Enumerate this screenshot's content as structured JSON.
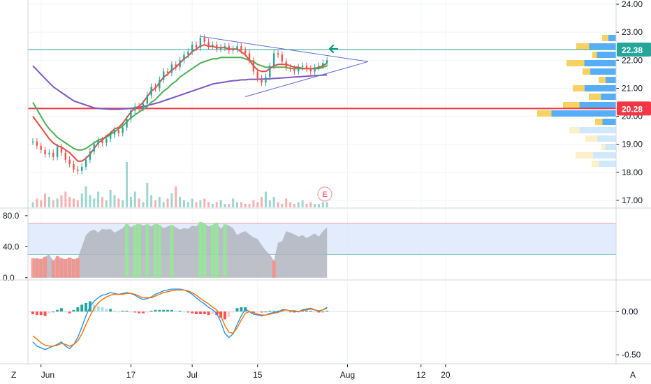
{
  "chart_data": [
    {
      "type": "candlestick",
      "panel": "price",
      "title": "",
      "y_ticks": [
        "24.00",
        "23.00",
        "22.00",
        "21.00",
        "20.00",
        "19.00",
        "18.00",
        "17.00"
      ],
      "y_tick_values": [
        24,
        23,
        22,
        21,
        20,
        19,
        18,
        17
      ],
      "ylim": [
        16.75,
        24.15
      ],
      "price_labels": [
        {
          "text": "22.38",
          "value": 22.38,
          "color": "#26a69a"
        },
        {
          "text": "20.28",
          "value": 20.28,
          "color": "#f23645"
        }
      ],
      "horizontal_lines": [
        {
          "value": 22.38,
          "color": "#26a69a"
        },
        {
          "value": 20.28,
          "color": "#f23645"
        }
      ],
      "close_series": [
        19.1,
        18.95,
        18.8,
        18.65,
        18.7,
        18.55,
        18.9,
        18.7,
        18.45,
        18.3,
        18.1,
        18.05,
        18.2,
        18.45,
        18.75,
        19.0,
        19.15,
        19.05,
        19.2,
        19.35,
        19.5,
        19.4,
        19.6,
        19.9,
        20.2,
        20.35,
        20.3,
        20.45,
        20.75,
        21.05,
        21.0,
        21.3,
        21.6,
        21.55,
        21.85,
        21.75,
        22.0,
        22.2,
        22.3,
        22.55,
        22.45,
        22.8,
        22.65,
        22.5,
        22.55,
        22.4,
        22.45,
        22.5,
        22.35,
        22.4,
        22.5,
        22.35,
        22.25,
        22.0,
        21.6,
        21.35,
        21.2,
        21.4,
        21.8,
        22.25,
        22.2,
        21.95,
        21.75,
        21.7,
        21.6,
        21.75,
        21.8,
        21.7,
        21.6,
        21.75,
        21.8,
        21.9,
        22.0
      ],
      "ma_fast": [
        20.0,
        19.8,
        19.6,
        19.4,
        19.2,
        19.05,
        18.95,
        18.9,
        18.8,
        18.7,
        18.55,
        18.4,
        18.4,
        18.5,
        18.65,
        18.85,
        19.05,
        19.15,
        19.3,
        19.4,
        19.55,
        19.6,
        19.75,
        19.95,
        20.15,
        20.3,
        20.35,
        20.5,
        20.7,
        20.9,
        21.0,
        21.2,
        21.4,
        21.5,
        21.65,
        21.75,
        21.9,
        22.05,
        22.15,
        22.3,
        22.4,
        22.5,
        22.55,
        22.5,
        22.5,
        22.45,
        22.45,
        22.45,
        22.4,
        22.4,
        22.4,
        22.3,
        22.2,
        22.0,
        21.8,
        21.65,
        21.6,
        21.6,
        21.7,
        21.8,
        21.85,
        21.85,
        21.85,
        21.8,
        21.75,
        21.75,
        21.7,
        21.7,
        21.7,
        21.7,
        21.75,
        21.8,
        21.9
      ],
      "ma_mid": [
        20.5,
        20.25,
        20.0,
        19.75,
        19.55,
        19.4,
        19.25,
        19.15,
        19.05,
        18.95,
        18.85,
        18.8,
        18.8,
        18.85,
        18.95,
        19.05,
        19.15,
        19.2,
        19.25,
        19.35,
        19.45,
        19.55,
        19.65,
        19.8,
        19.95,
        20.05,
        20.15,
        20.25,
        20.35,
        20.5,
        20.6,
        20.75,
        20.9,
        21.0,
        21.15,
        21.25,
        21.4,
        21.5,
        21.6,
        21.7,
        21.8,
        21.9,
        21.95,
        22.0,
        22.05,
        22.05,
        22.1,
        22.1,
        22.1,
        22.1,
        22.1,
        22.1,
        22.05,
        22.0,
        21.95,
        21.85,
        21.8,
        21.75,
        21.75,
        21.75,
        21.75,
        21.75,
        21.75,
        21.7,
        21.7,
        21.7,
        21.7,
        21.7,
        21.7,
        21.7,
        21.7,
        21.75,
        21.8
      ],
      "ma_slow": [
        21.8,
        21.65,
        21.5,
        21.35,
        21.2,
        21.05,
        20.95,
        20.85,
        20.75,
        20.65,
        20.55,
        20.5,
        20.45,
        20.4,
        20.35,
        20.3,
        20.28,
        20.27,
        20.26,
        20.25,
        20.25,
        20.25,
        20.26,
        20.27,
        20.28,
        20.3,
        20.32,
        20.35,
        20.38,
        20.42,
        20.46,
        20.5,
        20.55,
        20.6,
        20.65,
        20.7,
        20.75,
        20.8,
        20.85,
        20.9,
        20.95,
        21.0,
        21.05,
        21.1,
        21.15,
        21.18,
        21.2,
        21.22,
        21.25,
        21.27,
        21.28,
        21.3,
        21.3,
        21.32,
        21.32,
        21.32,
        21.33,
        21.33,
        21.34,
        21.35,
        21.36,
        21.37,
        21.38,
        21.39,
        21.4,
        21.41,
        21.42,
        21.43,
        21.44,
        21.45,
        21.46,
        21.47,
        21.48
      ],
      "volume": [
        3,
        5,
        4,
        8,
        6,
        4,
        5,
        7,
        9,
        6,
        5,
        4,
        8,
        12,
        7,
        5,
        9,
        6,
        4,
        10,
        7,
        5,
        4,
        26,
        6,
        9,
        5,
        3,
        14,
        7,
        4,
        6,
        3,
        5,
        8,
        12,
        6,
        4,
        3,
        5,
        3,
        4,
        5,
        3,
        2,
        3,
        4,
        2,
        2,
        5,
        3,
        3,
        2,
        2,
        4,
        3,
        6,
        9,
        4,
        6,
        3,
        2,
        5,
        3,
        2,
        3,
        4,
        2,
        3,
        2,
        2,
        3,
        3
      ],
      "annotations": [
        {
          "type": "earnings-marker",
          "text": "E"
        },
        {
          "type": "arrow",
          "direction": "left",
          "color": "#089981"
        },
        {
          "type": "triangle-pattern",
          "color": "#5b6bd6"
        }
      ],
      "volume_profile_bars": 16
    },
    {
      "type": "area",
      "panel": "oscillator",
      "y_ticks": [
        "80.0",
        "40.0",
        "0.0"
      ],
      "y_tick_values": [
        80,
        40,
        0
      ],
      "ylim": [
        -2,
        88
      ],
      "bands": {
        "upper": 70,
        "lower": 30
      },
      "values": [
        25,
        25,
        24,
        27,
        30,
        22,
        28,
        25,
        24,
        26,
        24,
        25,
        40,
        55,
        60,
        62,
        58,
        63,
        62,
        63,
        58,
        61,
        64,
        70,
        65,
        68,
        70,
        67,
        69,
        66,
        70,
        68,
        64,
        66,
        68,
        65,
        62,
        64,
        63,
        67,
        66,
        72,
        70,
        66,
        68,
        71,
        63,
        69,
        67,
        64,
        55,
        58,
        60,
        56,
        52,
        50,
        42,
        35,
        30,
        22,
        45,
        47,
        60,
        58,
        56,
        53,
        55,
        51,
        54,
        57,
        53,
        60,
        65
      ]
    },
    {
      "type": "macd",
      "panel": "macd",
      "y_ticks": [
        "0.00",
        "-0.50"
      ],
      "y_tick_values": [
        0,
        -0.5
      ],
      "ylim": [
        -0.58,
        0.35
      ],
      "macd": [
        -0.35,
        -0.4,
        -0.42,
        -0.44,
        -0.42,
        -0.4,
        -0.38,
        -0.35,
        -0.4,
        -0.43,
        -0.38,
        -0.3,
        -0.18,
        -0.05,
        0.06,
        0.12,
        0.16,
        0.19,
        0.2,
        0.22,
        0.21,
        0.2,
        0.21,
        0.22,
        0.21,
        0.19,
        0.16,
        0.14,
        0.15,
        0.17,
        0.2,
        0.22,
        0.24,
        0.25,
        0.26,
        0.26,
        0.26,
        0.25,
        0.23,
        0.2,
        0.16,
        0.12,
        0.09,
        0.05,
        0.02,
        -0.02,
        -0.12,
        -0.25,
        -0.3,
        -0.26,
        -0.15,
        -0.05,
        0.03,
        0.0,
        -0.03,
        -0.04,
        -0.05,
        -0.04,
        -0.02,
        -0.01,
        0.0,
        0.02,
        0.02,
        0.01,
        0.0,
        0.0,
        0.02,
        0.03,
        0.04,
        0.02,
        0.0,
        0.02,
        0.05
      ],
      "signal": [
        -0.28,
        -0.32,
        -0.36,
        -0.39,
        -0.4,
        -0.4,
        -0.39,
        -0.37,
        -0.38,
        -0.4,
        -0.38,
        -0.34,
        -0.26,
        -0.15,
        -0.05,
        0.04,
        0.1,
        0.14,
        0.17,
        0.19,
        0.2,
        0.2,
        0.2,
        0.21,
        0.21,
        0.2,
        0.18,
        0.16,
        0.16,
        0.16,
        0.18,
        0.2,
        0.22,
        0.23,
        0.24,
        0.25,
        0.25,
        0.25,
        0.24,
        0.22,
        0.19,
        0.15,
        0.12,
        0.09,
        0.05,
        0.02,
        -0.05,
        -0.16,
        -0.24,
        -0.25,
        -0.19,
        -0.1,
        -0.02,
        0.0,
        -0.01,
        -0.03,
        -0.04,
        -0.04,
        -0.03,
        -0.02,
        -0.01,
        0.01,
        0.02,
        0.01,
        0.01,
        0.0,
        0.01,
        0.02,
        0.03,
        0.02,
        0.01,
        0.02,
        0.04
      ],
      "histogram": [
        -0.03,
        -0.04,
        -0.04,
        -0.05,
        -0.02,
        0.0,
        0.02,
        0.04,
        0.0,
        -0.02,
        0.02,
        0.05,
        0.08,
        0.1,
        0.12,
        0.08,
        0.06,
        0.05,
        0.03,
        0.03,
        0.01,
        0.0,
        0.01,
        0.01,
        0.0,
        -0.01,
        -0.02,
        -0.02,
        -0.01,
        0.01,
        0.02,
        0.02,
        0.02,
        0.02,
        0.02,
        0.01,
        0.01,
        0.0,
        -0.01,
        -0.02,
        -0.03,
        -0.03,
        -0.03,
        -0.04,
        -0.03,
        -0.04,
        -0.07,
        -0.09,
        -0.06,
        -0.01,
        0.04,
        0.05,
        0.05,
        0.0,
        -0.02,
        -0.01,
        -0.01,
        0.0,
        0.01,
        0.01,
        0.01,
        0.01,
        0.0,
        0.0,
        -0.01,
        0.0,
        0.01,
        0.01,
        0.01,
        0.0,
        -0.01,
        0.0,
        0.01
      ]
    }
  ],
  "x_axis": {
    "labels": [
      {
        "text": "Jun",
        "bar": 2
      },
      {
        "text": "17",
        "bar": 24
      },
      {
        "text": "Jul",
        "bar": 39
      },
      {
        "text": "15",
        "bar": 55
      },
      {
        "text": "Aug",
        "bar": 77
      },
      {
        "text": "12",
        "bar": 95
      },
      {
        "text": "20",
        "bar": 101
      }
    ]
  },
  "corner_labels": {
    "left": "Z",
    "right": "A"
  },
  "colors": {
    "up": "#26a69a",
    "down": "#ef5350",
    "ma_fast": "#e84a3f",
    "ma_mid": "#4caf50",
    "ma_slow": "#7e57c2",
    "triangle": "#5b6bd6",
    "osc_fill": "#b2b5be",
    "osc_band": "#dbe7fb",
    "macd": "#2196f3",
    "signal": "#ff6d00",
    "vp_up": "#42a5f5",
    "vp_down": "#f7c948"
  }
}
